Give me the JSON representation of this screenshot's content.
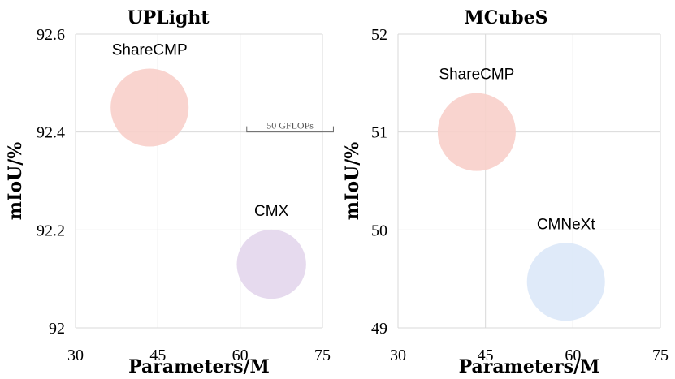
{
  "chart_data": [
    {
      "type": "scatter",
      "title": "UPLight",
      "xlabel": "Parameters/M",
      "ylabel": "mIoU/%",
      "xlim": [
        30,
        75
      ],
      "ylim": [
        92,
        92.6
      ],
      "xticks": [
        30,
        45,
        60,
        75
      ],
      "yticks": [
        "92",
        "92.2",
        "92.4",
        "92.6"
      ],
      "series": [
        {
          "name": "ShareCMP",
          "x": 43.5,
          "y": 92.45,
          "gflops": 45,
          "color": "#f8cfca"
        },
        {
          "name": "CMX",
          "x": 65.7,
          "y": 92.13,
          "gflops": 40,
          "color": "#e3d6ec"
        }
      ],
      "scale_annotation": {
        "label": "50 GFLOPs",
        "x": 61.2,
        "y": 92.4,
        "width_gflops": 50
      }
    },
    {
      "type": "scatter",
      "title": "MCubeS",
      "xlabel": "Parameters/M",
      "ylabel": "mIoU/%",
      "xlim": [
        30,
        75
      ],
      "ylim": [
        49,
        52
      ],
      "xticks": [
        30,
        45,
        60,
        75
      ],
      "yticks": [
        "49",
        "50",
        "51",
        "52"
      ],
      "series": [
        {
          "name": "ShareCMP",
          "x": 43.5,
          "y": 51.0,
          "gflops": 45,
          "color": "#f8cfca"
        },
        {
          "name": "CMNeXt",
          "x": 58.8,
          "y": 49.47,
          "gflops": 45,
          "color": "#dbe8f8"
        }
      ]
    }
  ]
}
